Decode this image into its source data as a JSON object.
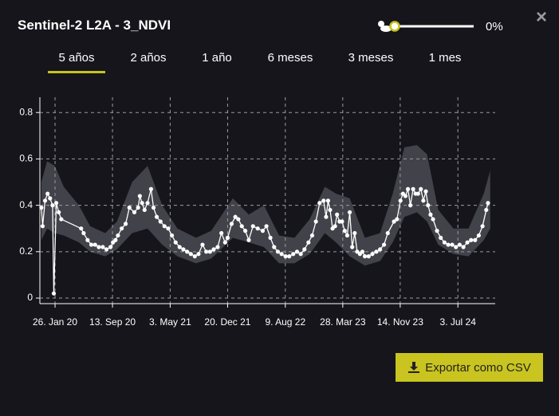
{
  "header": {
    "title": "Sentinel-2 L2A - 3_NDVI",
    "close": "×"
  },
  "slider": {
    "value": 0,
    "label": "0%"
  },
  "tabs": {
    "items": [
      "5 años",
      "2 años",
      "1 año",
      "6 meses",
      "3 meses",
      "1 mes"
    ],
    "active": 0
  },
  "chart_data": {
    "type": "line",
    "xlim": [
      "2019-11-26",
      "2024-11-30"
    ],
    "xticks": [
      {
        "value": "2020-01-26",
        "label": "26. Jan 20"
      },
      {
        "value": "2020-09-13",
        "label": "13. Sep 20"
      },
      {
        "value": "2021-05-03",
        "label": "3. May 21"
      },
      {
        "value": "2021-12-20",
        "label": "20. Dec 21"
      },
      {
        "value": "2022-08-09",
        "label": "9. Aug 22"
      },
      {
        "value": "2023-03-28",
        "label": "28. Mar 23"
      },
      {
        "value": "2023-11-14",
        "label": "14. Nov 23"
      },
      {
        "value": "2024-07-03",
        "label": "3. Jul 24"
      }
    ],
    "ylim": [
      -0.024,
      0.866
    ],
    "yticks": [
      0,
      0.2,
      0.4,
      0.6,
      0.8
    ],
    "grid": true,
    "x": [
      "2019-12-02",
      "2019-12-07",
      "2019-12-17",
      "2019-12-27",
      "2020-01-06",
      "2020-01-16",
      "2020-01-21",
      "2020-01-31",
      "2020-02-10",
      "2020-02-20",
      "2020-05-10",
      "2020-05-20",
      "2020-06-05",
      "2020-06-20",
      "2020-07-05",
      "2020-07-20",
      "2020-08-05",
      "2020-08-20",
      "2020-09-05",
      "2020-09-15",
      "2020-09-25",
      "2020-10-05",
      "2020-10-20",
      "2020-11-05",
      "2020-11-20",
      "2020-12-10",
      "2020-12-25",
      "2021-01-01",
      "2021-01-10",
      "2021-01-20",
      "2021-02-01",
      "2021-02-15",
      "2021-02-25",
      "2021-03-10",
      "2021-03-25",
      "2021-04-10",
      "2021-04-25",
      "2021-05-10",
      "2021-05-25",
      "2021-06-10",
      "2021-06-25",
      "2021-07-10",
      "2021-07-25",
      "2021-08-10",
      "2021-08-25",
      "2021-09-10",
      "2021-09-25",
      "2021-10-10",
      "2021-10-25",
      "2021-11-10",
      "2021-11-25",
      "2021-12-10",
      "2021-12-20",
      "2022-01-05",
      "2022-01-20",
      "2022-02-01",
      "2022-02-15",
      "2022-03-01",
      "2022-03-15",
      "2022-04-01",
      "2022-04-20",
      "2022-05-10",
      "2022-05-25",
      "2022-06-10",
      "2022-06-25",
      "2022-07-10",
      "2022-07-25",
      "2022-08-10",
      "2022-08-25",
      "2022-09-10",
      "2022-09-25",
      "2022-10-10",
      "2022-10-25",
      "2022-11-10",
      "2022-11-25",
      "2022-12-10",
      "2022-12-25",
      "2023-01-10",
      "2023-01-20",
      "2023-01-28",
      "2023-02-05",
      "2023-02-15",
      "2023-02-25",
      "2023-03-05",
      "2023-03-15",
      "2023-03-25",
      "2023-04-05",
      "2023-04-15",
      "2023-04-25",
      "2023-05-05",
      "2023-05-15",
      "2023-05-25",
      "2023-06-05",
      "2023-06-15",
      "2023-06-25",
      "2023-07-10",
      "2023-07-25",
      "2023-08-10",
      "2023-08-25",
      "2023-09-10",
      "2023-09-25",
      "2023-10-20",
      "2023-11-01",
      "2023-11-15",
      "2023-11-25",
      "2023-12-05",
      "2023-12-15",
      "2023-12-25",
      "2024-01-05",
      "2024-01-15",
      "2024-01-25",
      "2024-02-05",
      "2024-02-15",
      "2024-02-25",
      "2024-03-05",
      "2024-03-15",
      "2024-03-25",
      "2024-04-10",
      "2024-04-25",
      "2024-05-10",
      "2024-05-25",
      "2024-06-10",
      "2024-06-25",
      "2024-07-10",
      "2024-07-25",
      "2024-08-10",
      "2024-08-25",
      "2024-09-10",
      "2024-09-25",
      "2024-10-10",
      "2024-10-25",
      "2024-11-01"
    ],
    "series": [
      {
        "color": "#ffffff",
        "values": [
          0.39,
          0.31,
          0.42,
          0.45,
          0.43,
          0.4,
          0.02,
          0.41,
          0.37,
          0.34,
          0.3,
          0.28,
          0.25,
          0.23,
          0.23,
          0.22,
          0.22,
          0.21,
          0.22,
          0.24,
          0.25,
          0.27,
          0.3,
          0.32,
          0.39,
          0.37,
          0.39,
          0.44,
          0.41,
          0.38,
          0.41,
          0.47,
          0.39,
          0.35,
          0.33,
          0.31,
          0.3,
          0.27,
          0.24,
          0.22,
          0.21,
          0.2,
          0.19,
          0.18,
          0.19,
          0.23,
          0.2,
          0.2,
          0.21,
          0.22,
          0.28,
          0.24,
          0.26,
          0.32,
          0.35,
          0.34,
          0.31,
          0.29,
          0.25,
          0.31,
          0.3,
          0.29,
          0.31,
          0.26,
          0.22,
          0.2,
          0.19,
          0.18,
          0.18,
          0.19,
          0.2,
          0.19,
          0.21,
          0.24,
          0.27,
          0.33,
          0.41,
          0.42,
          0.35,
          0.42,
          0.38,
          0.3,
          0.31,
          0.36,
          0.33,
          0.33,
          0.29,
          0.27,
          0.37,
          0.22,
          0.28,
          0.2,
          0.19,
          0.2,
          0.18,
          0.18,
          0.19,
          0.2,
          0.21,
          0.23,
          0.28,
          0.33,
          0.34,
          0.42,
          0.45,
          0.44,
          0.47,
          0.4,
          0.47,
          0.45,
          0.45,
          0.47,
          0.42,
          0.46,
          0.4,
          0.36,
          0.34,
          0.29,
          0.26,
          0.24,
          0.23,
          0.23,
          0.22,
          0.23,
          0.22,
          0.24,
          0.25,
          0.25,
          0.27,
          0.31,
          0.38,
          0.41
        ]
      }
    ],
    "band": {
      "color": "#4a4a52",
      "x": [
        "2019-12-02",
        "2019-12-25",
        "2020-01-25",
        "2020-03-01",
        "2020-05-01",
        "2020-06-15",
        "2020-08-15",
        "2020-10-01",
        "2020-12-01",
        "2021-02-01",
        "2021-04-01",
        "2021-06-01",
        "2021-08-15",
        "2021-10-15",
        "2022-01-10",
        "2022-03-15",
        "2022-05-15",
        "2022-07-15",
        "2022-09-15",
        "2022-11-15",
        "2023-01-15",
        "2023-03-01",
        "2023-04-25",
        "2023-06-25",
        "2023-08-25",
        "2023-10-15",
        "2023-12-01",
        "2024-01-20",
        "2024-03-01",
        "2024-04-15",
        "2024-06-15",
        "2024-08-15",
        "2024-10-15",
        "2024-11-10"
      ],
      "lower": [
        0.25,
        0.3,
        0.28,
        0.27,
        0.24,
        0.2,
        0.18,
        0.21,
        0.28,
        0.3,
        0.23,
        0.18,
        0.15,
        0.17,
        0.26,
        0.24,
        0.22,
        0.15,
        0.15,
        0.19,
        0.28,
        0.24,
        0.18,
        0.14,
        0.16,
        0.24,
        0.35,
        0.37,
        0.33,
        0.23,
        0.19,
        0.18,
        0.25,
        0.3
      ],
      "upper": [
        0.5,
        0.59,
        0.57,
        0.48,
        0.4,
        0.31,
        0.28,
        0.33,
        0.5,
        0.57,
        0.4,
        0.3,
        0.26,
        0.29,
        0.43,
        0.36,
        0.4,
        0.27,
        0.26,
        0.34,
        0.48,
        0.45,
        0.43,
        0.26,
        0.28,
        0.45,
        0.65,
        0.66,
        0.62,
        0.38,
        0.3,
        0.3,
        0.45,
        0.55
      ]
    }
  },
  "export_button": {
    "label": "Exportar como CSV"
  }
}
